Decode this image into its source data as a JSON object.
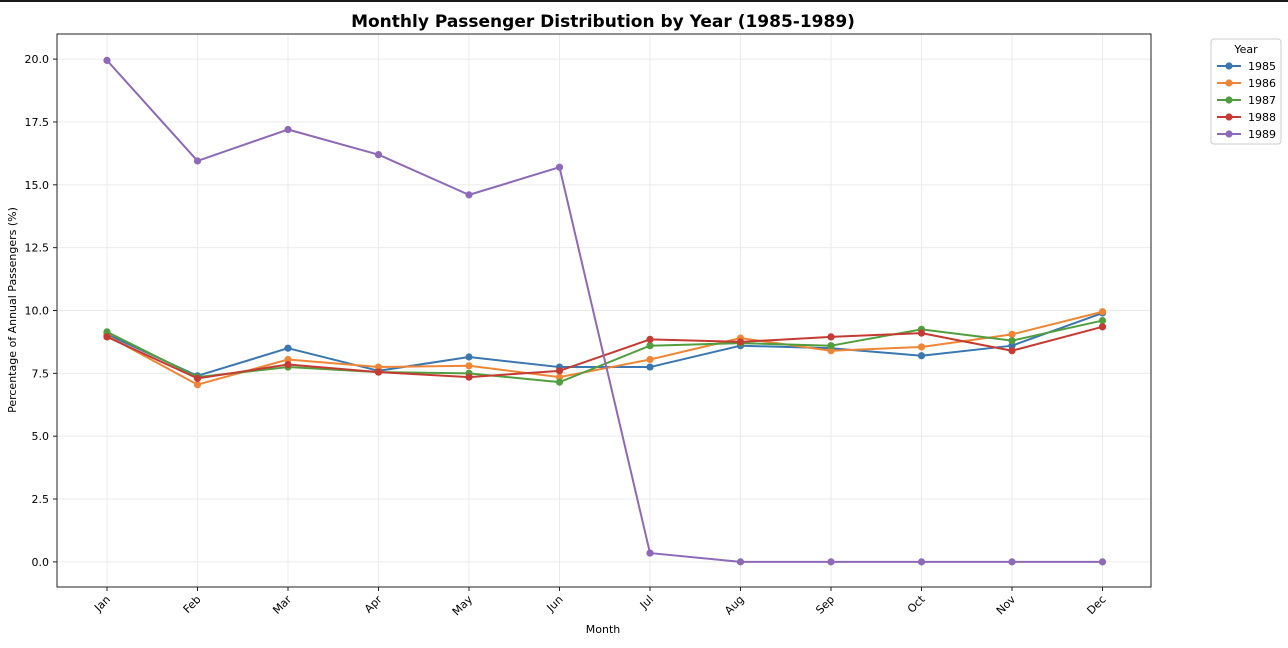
{
  "chart_data": {
    "type": "line",
    "title": "Monthly Passenger Distribution by Year (1985-1989)",
    "xlabel": "Month",
    "ylabel": "Percentage of Annual Passengers (%)",
    "categories": [
      "Jan",
      "Feb",
      "Mar",
      "Apr",
      "May",
      "Jun",
      "Jul",
      "Aug",
      "Sep",
      "Oct",
      "Nov",
      "Dec"
    ],
    "ylim": [
      -1.0,
      21.0
    ],
    "yticks": [
      0.0,
      2.5,
      5.0,
      7.5,
      10.0,
      12.5,
      15.0,
      17.5,
      20.0
    ],
    "ytick_labels": [
      "0.0",
      "2.5",
      "5.0",
      "7.5",
      "10.0",
      "12.5",
      "15.0",
      "17.5",
      "20.0"
    ],
    "grid": true,
    "legend": {
      "title": "Year",
      "placement": "outside-top-right"
    },
    "series": [
      {
        "name": "1985",
        "color": "#3a76af",
        "values": [
          9.05,
          7.4,
          8.5,
          7.6,
          8.15,
          7.75,
          7.75,
          8.6,
          8.5,
          8.2,
          8.6,
          9.9
        ]
      },
      {
        "name": "1986",
        "color": "#ef8636",
        "values": [
          9.0,
          7.05,
          8.05,
          7.75,
          7.8,
          7.35,
          8.05,
          8.9,
          8.4,
          8.55,
          9.05,
          9.95
        ]
      },
      {
        "name": "1987",
        "color": "#519e3e",
        "values": [
          9.15,
          7.35,
          7.75,
          7.55,
          7.5,
          7.15,
          8.6,
          8.7,
          8.6,
          9.25,
          8.8,
          9.6
        ]
      },
      {
        "name": "1988",
        "color": "#c53a32",
        "values": [
          8.95,
          7.3,
          7.85,
          7.55,
          7.35,
          7.6,
          8.85,
          8.75,
          8.95,
          9.1,
          8.4,
          9.35
        ]
      },
      {
        "name": "1989",
        "color": "#8d69b8",
        "values": [
          19.95,
          15.95,
          17.2,
          16.2,
          14.6,
          15.7,
          0.35,
          0.0,
          0.0,
          0.0,
          0.0,
          0.0
        ]
      }
    ]
  }
}
